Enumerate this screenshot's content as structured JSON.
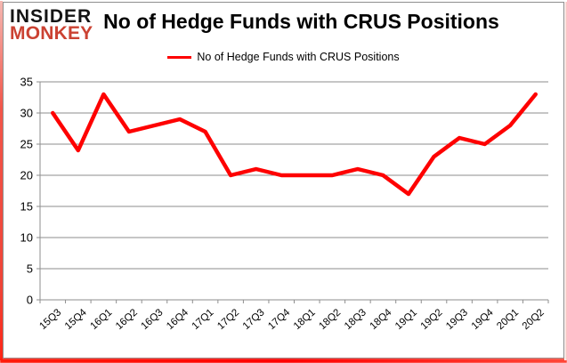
{
  "brand": {
    "line1": "INSIDER",
    "line2": "MONKEY",
    "line1_color": "#141414",
    "line2_color": "#cb4232"
  },
  "header": {
    "title": "No of Hedge Funds with CRUS Positions"
  },
  "legend": {
    "label": "No of Hedge Funds with CRUS Positions"
  },
  "chart_data": {
    "type": "line",
    "title": "No of Hedge Funds with CRUS Positions",
    "categories": [
      "15Q3",
      "15Q4",
      "16Q1",
      "16Q2",
      "16Q3",
      "16Q4",
      "17Q1",
      "17Q2",
      "17Q3",
      "17Q4",
      "18Q1",
      "18Q2",
      "18Q3",
      "18Q4",
      "19Q1",
      "19Q2",
      "19Q3",
      "19Q4",
      "20Q1",
      "20Q2"
    ],
    "series": [
      {
        "name": "No of Hedge Funds with CRUS Positions",
        "color": "#fe0000",
        "values": [
          30,
          24,
          33,
          27,
          28,
          29,
          27,
          20,
          21,
          20,
          20,
          20,
          21,
          20,
          17,
          23,
          26,
          25,
          28,
          33
        ]
      }
    ],
    "xlabel": "",
    "ylabel": "",
    "ylim": [
      0,
      35
    ],
    "yticks": [
      0,
      5,
      10,
      15,
      20,
      25,
      30,
      35
    ],
    "grid": true,
    "legend_position": "top",
    "colors": {
      "grid": "#8e8e8e",
      "tick_label": "#000000",
      "background": "#ffffff",
      "frame_border": "#8f8f8f",
      "frame_glow": "#ff1c0c"
    }
  }
}
